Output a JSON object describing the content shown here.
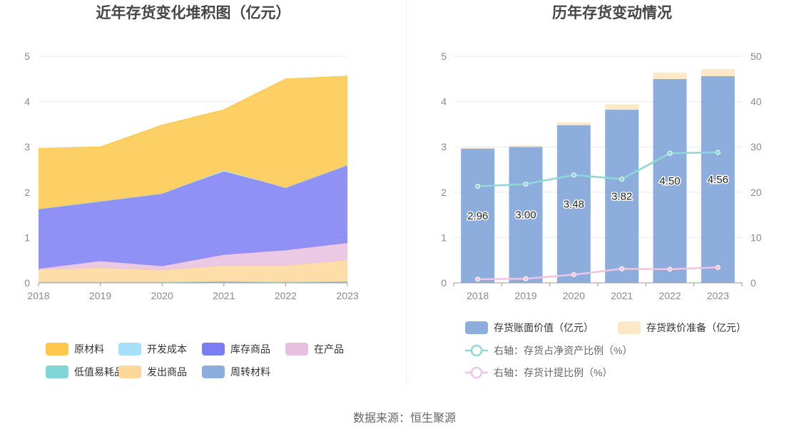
{
  "left_chart": {
    "title": "近年存货变化堆积图（亿元）",
    "legend": [
      {
        "name": "原材料",
        "color": "#fdc84a"
      },
      {
        "name": "开发成本",
        "color": "#a7dffb"
      },
      {
        "name": "库存商品",
        "color": "#7b7ef2"
      },
      {
        "name": "在产品",
        "color": "#e7bfe0"
      },
      {
        "name": "低值易耗品",
        "color": "#7ed6d6"
      },
      {
        "name": "发出商品",
        "color": "#fdd89a"
      },
      {
        "name": "周转材料",
        "color": "#8daddc"
      }
    ]
  },
  "right_chart": {
    "title": "历年存货变动情况",
    "legend": [
      {
        "name": "存货账面价值（亿元）",
        "color": "#8daddc",
        "kind": "bar"
      },
      {
        "name": "存货跌价准备（亿元）",
        "color": "#fde8c8",
        "kind": "bar"
      },
      {
        "name": "右轴：存货占净资产比例（%）",
        "color": "#8ed8d8",
        "kind": "line"
      },
      {
        "name": "右轴：存货计提比例（%）",
        "color": "#f0c4e4",
        "kind": "line"
      }
    ]
  },
  "source": "数据来源：恒生聚源",
  "chart_data": [
    {
      "type": "area",
      "stacked": true,
      "title": "近年存货变化堆积图（亿元）",
      "x": [
        "2018",
        "2019",
        "2020",
        "2021",
        "2022",
        "2023"
      ],
      "ylim": [
        0,
        5
      ],
      "yticks": [
        0,
        1,
        2,
        3,
        4,
        5
      ],
      "grid": true,
      "legend_position": "bottom",
      "series": [
        {
          "name": "周转材料",
          "color": "#8daddc",
          "values": [
            0.01,
            0.01,
            0.01,
            0.02,
            0.01,
            0.02
          ]
        },
        {
          "name": "低值易耗品",
          "color": "#7ed6d6",
          "values": [
            0.0,
            0.0,
            0.0,
            0.01,
            0.0,
            0.01
          ]
        },
        {
          "name": "发出商品",
          "color": "#fdd89a",
          "values": [
            0.28,
            0.32,
            0.27,
            0.35,
            0.37,
            0.47
          ]
        },
        {
          "name": "在产品",
          "color": "#e7bfe0",
          "values": [
            0.02,
            0.15,
            0.09,
            0.24,
            0.34,
            0.38
          ]
        },
        {
          "name": "库存商品",
          "color": "#7b7ef2",
          "values": [
            1.32,
            1.32,
            1.6,
            1.83,
            1.38,
            1.72
          ]
        },
        {
          "name": "开发成本",
          "color": "#a7dffb",
          "values": [
            0.0,
            0.0,
            0.0,
            0.03,
            0.0,
            0.0
          ]
        },
        {
          "name": "原材料",
          "color": "#fdc84a",
          "values": [
            1.33,
            1.2,
            1.51,
            1.34,
            2.4,
            1.96
          ]
        }
      ]
    },
    {
      "type": "bar",
      "stacked": true,
      "title": "历年存货变动情况",
      "categories": [
        "2018",
        "2019",
        "2020",
        "2021",
        "2022",
        "2023"
      ],
      "ylim": [
        0,
        5
      ],
      "yticks": [
        0,
        1,
        2,
        3,
        4,
        5
      ],
      "y2lim": [
        0,
        50
      ],
      "y2ticks": [
        0,
        10,
        20,
        30,
        40,
        50
      ],
      "grid": true,
      "legend_position": "bottom",
      "series": [
        {
          "name": "存货账面价值（亿元）",
          "color": "#8daddc",
          "values": [
            2.96,
            3.0,
            3.48,
            3.82,
            4.5,
            4.56
          ],
          "labels": [
            "2.96",
            "3.00",
            "3.48",
            "3.82",
            "4.50",
            "4.56"
          ]
        },
        {
          "name": "存货跌价准备（亿元）",
          "color": "#fde8c8",
          "values": [
            0.03,
            0.03,
            0.06,
            0.12,
            0.14,
            0.16
          ]
        }
      ],
      "line_series": [
        {
          "name": "右轴：存货占净资产比例（%）",
          "color": "#8ed8d8",
          "axis": "right",
          "values": [
            21.3,
            21.8,
            23.8,
            22.9,
            28.6,
            28.8
          ]
        },
        {
          "name": "右轴：存货计提比例（%）",
          "color": "#f0c4e4",
          "axis": "right",
          "values": [
            0.8,
            0.9,
            1.8,
            3.1,
            3.0,
            3.4
          ]
        }
      ]
    }
  ]
}
